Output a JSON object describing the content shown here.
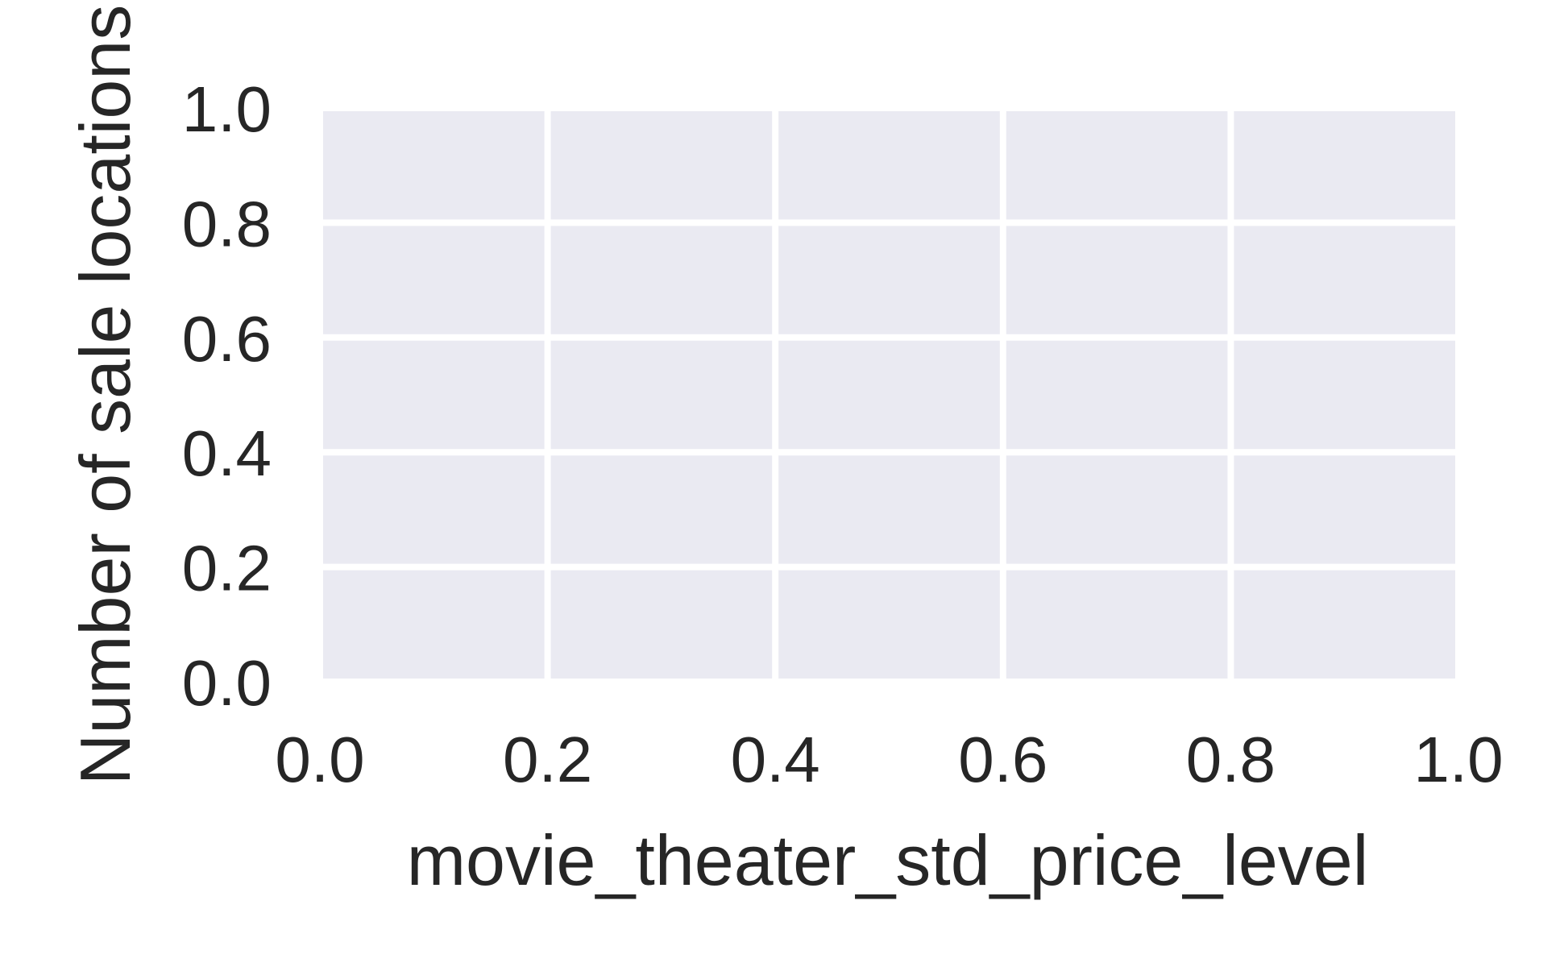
{
  "chart_data": {
    "type": "bar",
    "title": "",
    "xlabel": "movie_theater_std_price_level",
    "ylabel": "Number of sale locations",
    "xlim": [
      0.0,
      1.0
    ],
    "ylim": [
      0.0,
      1.0
    ],
    "xticks": [
      "0.0",
      "0.2",
      "0.4",
      "0.6",
      "0.8",
      "1.0"
    ],
    "yticks": [
      "0.0",
      "0.2",
      "0.4",
      "0.6",
      "0.8",
      "1.0"
    ],
    "categories": [],
    "values": [],
    "grid": true,
    "colors": {
      "plot_background": "#eaeaf2",
      "grid": "#ffffff",
      "text": "#262626"
    }
  }
}
